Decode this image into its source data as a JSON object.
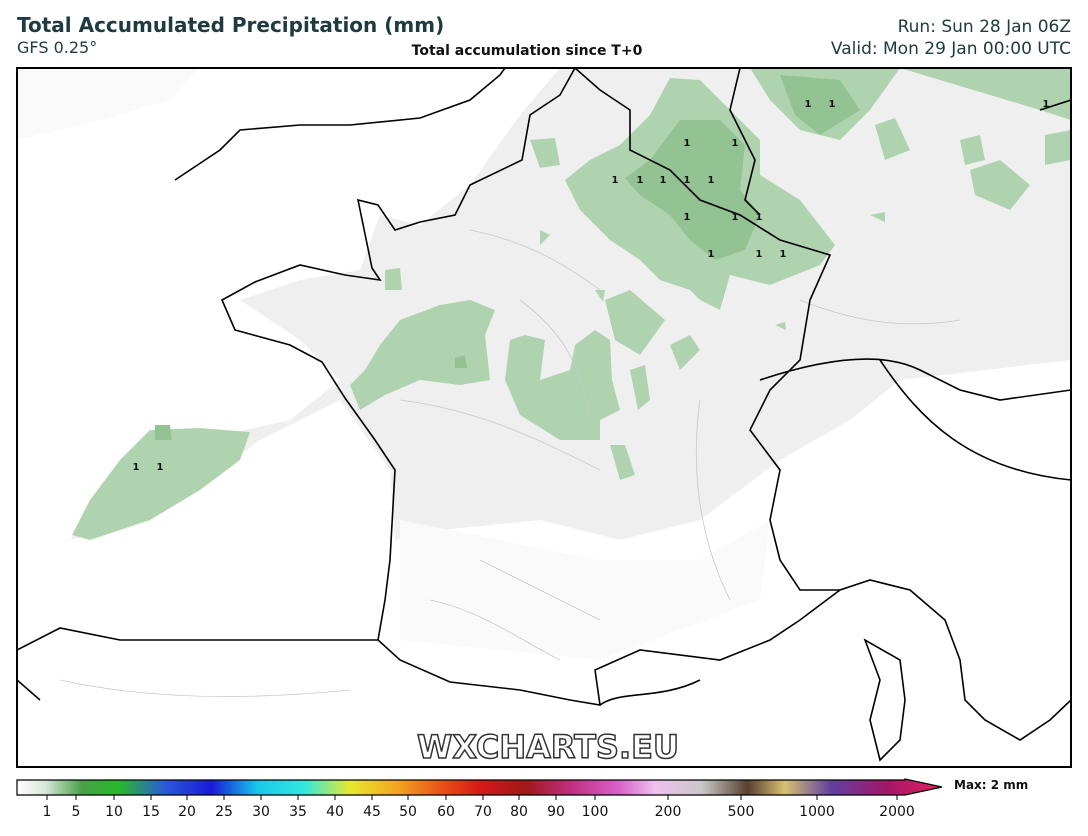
{
  "header": {
    "title": "Total Accumulated Precipitation (mm)",
    "model": "GFS 0.25°",
    "subtitle": "Total accumulation since T+0",
    "run": "Run: Sun 28 Jan 06Z",
    "valid": "Valid: Mon 29 Jan 00:00 UTC"
  },
  "map": {
    "labels": [
      "1",
      "1",
      "1",
      "1",
      "1",
      "1",
      "1",
      "1",
      "1",
      "1",
      "1",
      "1",
      "1",
      "1",
      "1",
      "1",
      "1",
      "1"
    ],
    "watermark": "WXCHARTS.EU"
  },
  "colorbar": {
    "ticks": [
      1,
      5,
      10,
      15,
      20,
      25,
      30,
      35,
      40,
      45,
      50,
      60,
      70,
      80,
      90,
      100,
      200,
      500,
      1000,
      2000
    ],
    "max_label": "Max: 2 mm"
  }
}
